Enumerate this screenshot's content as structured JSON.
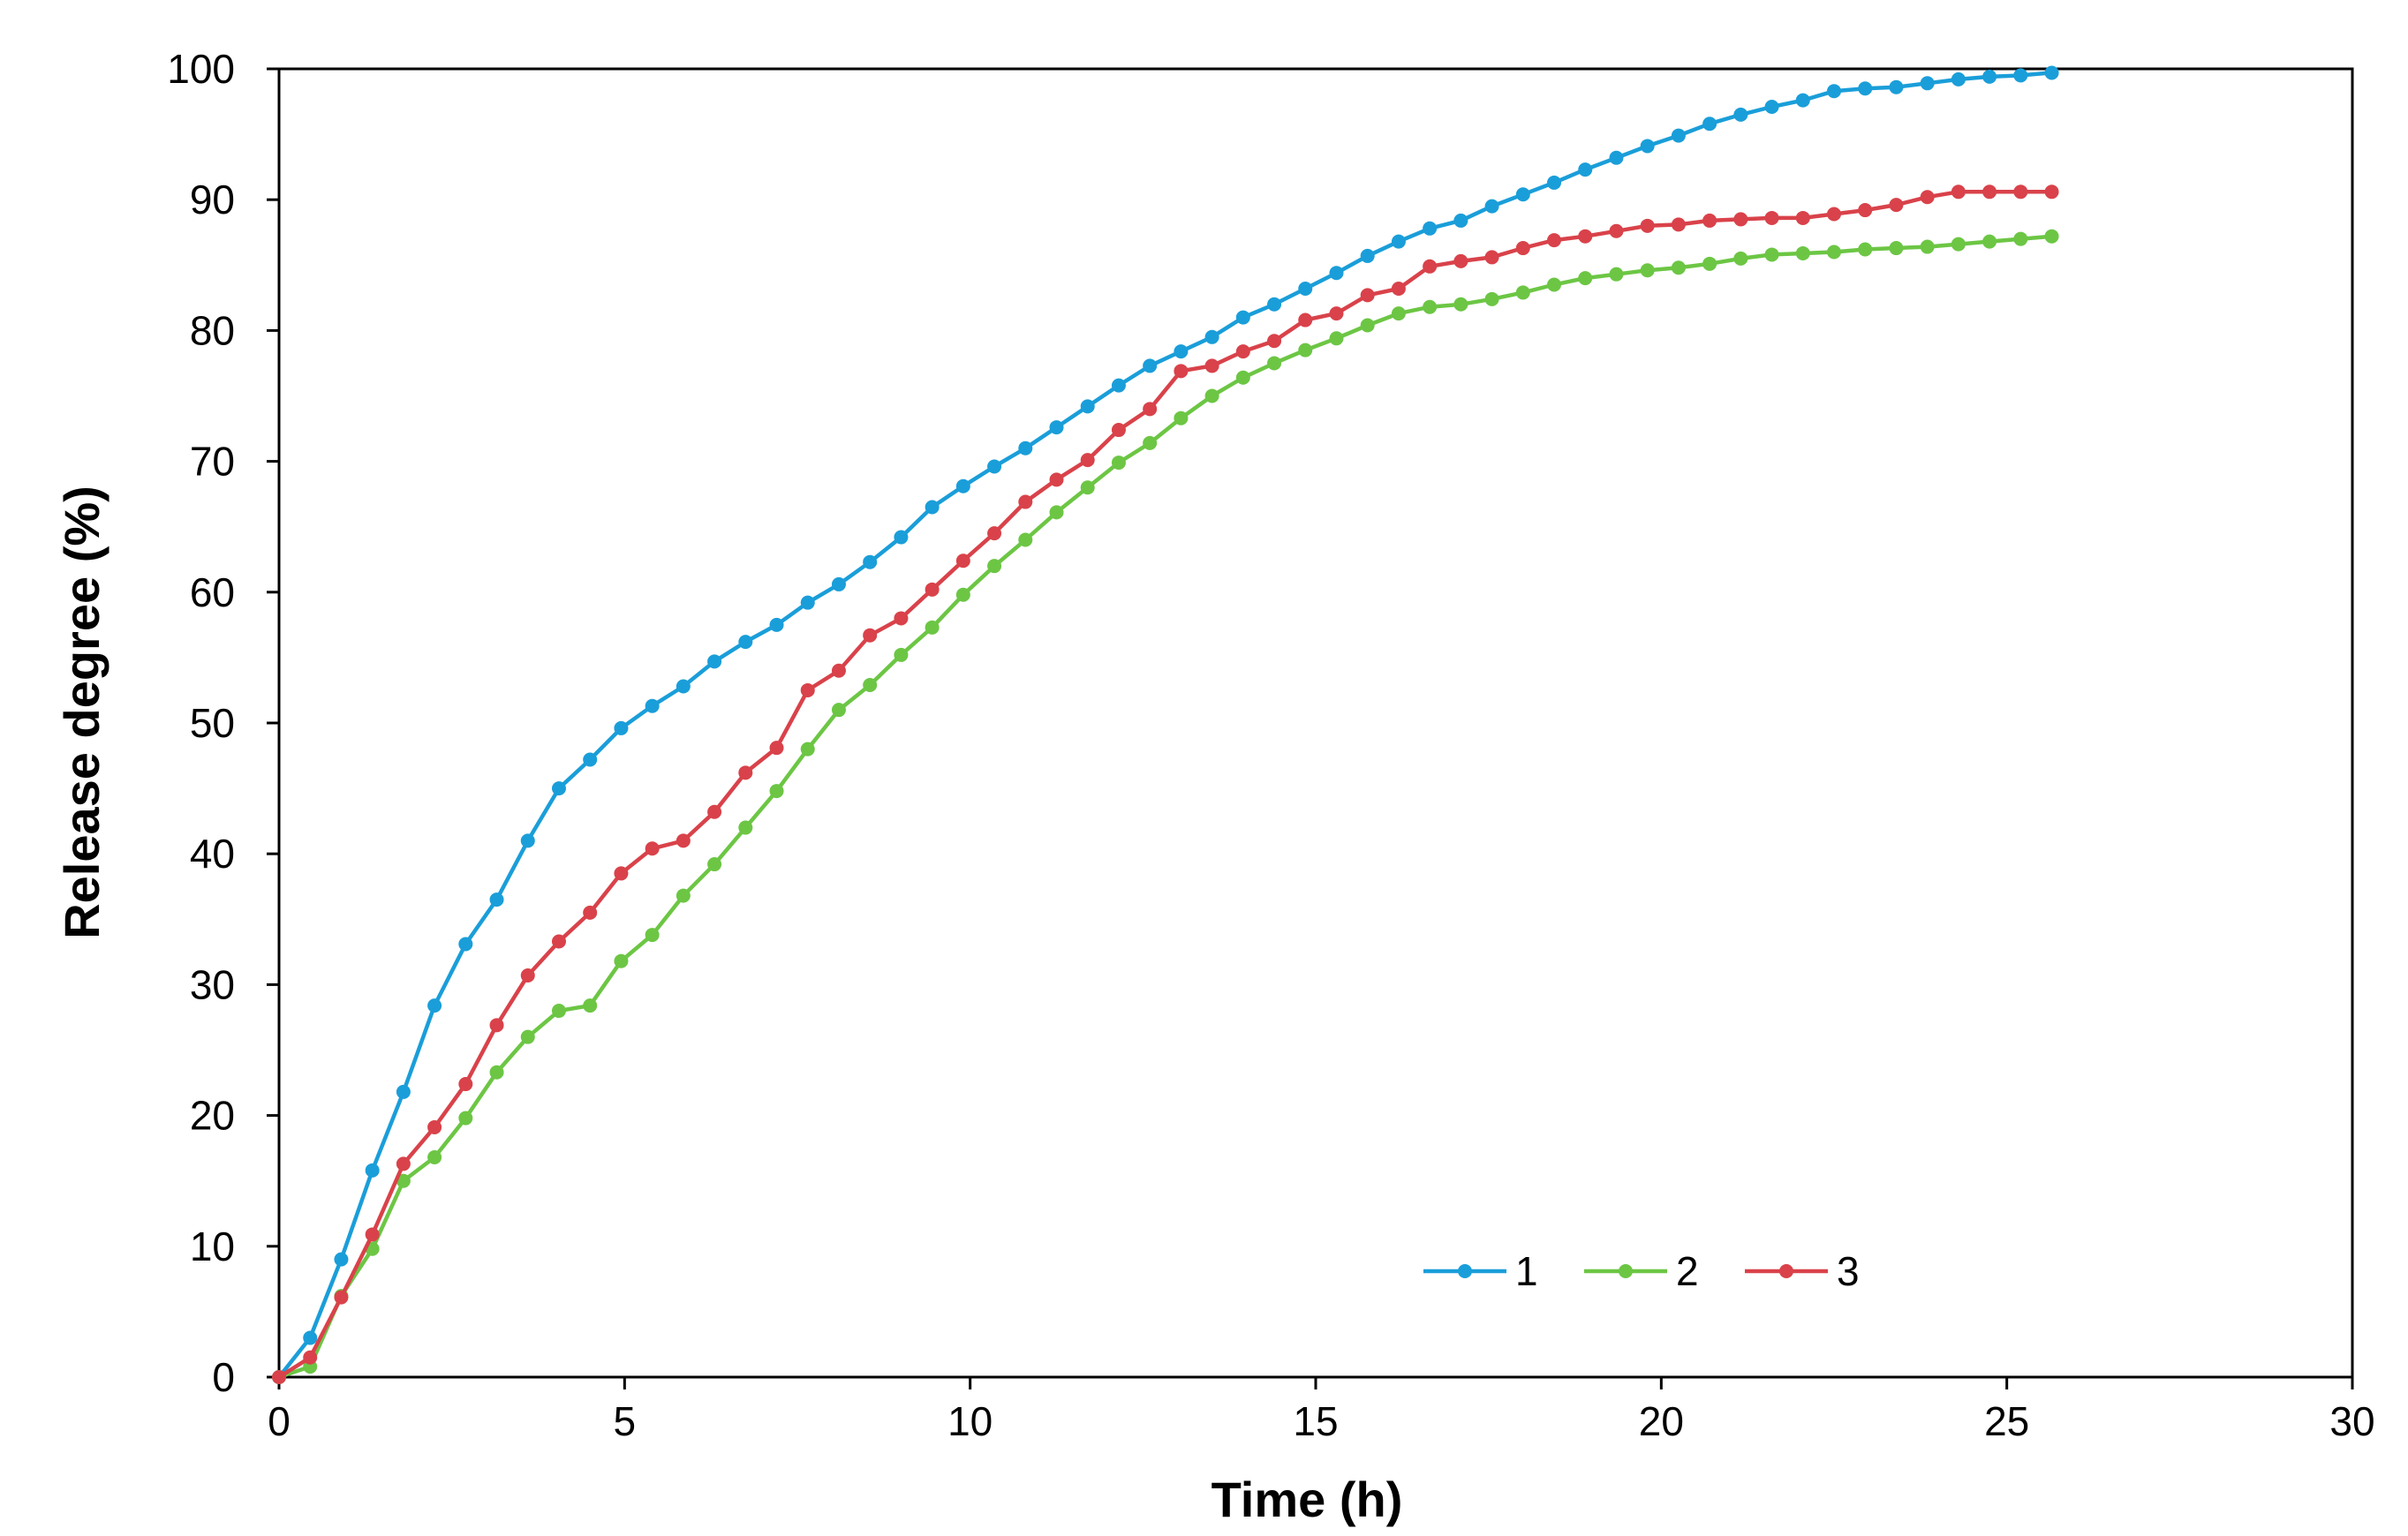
{
  "chart_data": {
    "type": "line",
    "title": "",
    "xlabel": "Time (h)",
    "ylabel": "Release degree (%)",
    "xlim": [
      0,
      30
    ],
    "ylim": [
      0,
      100
    ],
    "xticks": [
      0,
      5,
      10,
      15,
      20,
      25,
      30
    ],
    "yticks": [
      0,
      10,
      20,
      30,
      40,
      50,
      60,
      70,
      80,
      90,
      100
    ],
    "grid": false,
    "legend_position": "bottom-right",
    "x": [
      0,
      0.45,
      0.9,
      1.35,
      1.8,
      2.25,
      2.7,
      3.15,
      3.6,
      4.05,
      4.5,
      4.95,
      5.4,
      5.85,
      6.3,
      6.75,
      7.2,
      7.65,
      8.1,
      8.55,
      9.0,
      9.45,
      9.9,
      10.35,
      10.8,
      11.25,
      11.7,
      12.15,
      12.6,
      13.05,
      13.5,
      13.95,
      14.4,
      14.85,
      15.3,
      15.75,
      16.2,
      16.65,
      17.1,
      17.55,
      18.0,
      18.45,
      18.9,
      19.35,
      19.8,
      20.25,
      20.7,
      21.15,
      21.6,
      22.05,
      22.5,
      22.95,
      23.4,
      23.85,
      24.3,
      24.75,
      25.2,
      25.65
    ],
    "series": [
      {
        "name": "1",
        "color": "#1a9ed9",
        "values": [
          0,
          3.0,
          9.0,
          15.8,
          21.8,
          28.4,
          33.1,
          36.5,
          41.0,
          45.0,
          47.2,
          49.6,
          51.3,
          52.8,
          54.7,
          56.2,
          57.5,
          59.2,
          60.6,
          62.3,
          64.2,
          66.5,
          68.1,
          69.6,
          71.0,
          72.6,
          74.2,
          75.8,
          77.3,
          78.4,
          79.5,
          81.0,
          82.0,
          83.2,
          84.4,
          85.7,
          86.8,
          87.8,
          88.4,
          89.5,
          90.4,
          91.3,
          92.3,
          93.2,
          94.1,
          94.9,
          95.8,
          96.5,
          97.1,
          97.6,
          98.3,
          98.5,
          98.6,
          98.9,
          99.2,
          99.4,
          99.5,
          99.7
        ]
      },
      {
        "name": "2",
        "color": "#6cc644",
        "values": [
          0,
          0.8,
          6.2,
          9.8,
          15.0,
          16.8,
          19.8,
          23.3,
          26.0,
          28.0,
          28.4,
          31.8,
          33.8,
          36.8,
          39.2,
          42.0,
          44.8,
          48.0,
          51.0,
          52.9,
          55.2,
          57.3,
          59.8,
          62.0,
          64.0,
          66.1,
          68.0,
          69.9,
          71.4,
          73.3,
          75.0,
          76.4,
          77.5,
          78.5,
          79.4,
          80.4,
          81.3,
          81.8,
          82.0,
          82.4,
          82.9,
          83.5,
          84.0,
          84.3,
          84.6,
          84.8,
          85.1,
          85.5,
          85.8,
          85.9,
          86.0,
          86.2,
          86.3,
          86.4,
          86.6,
          86.8,
          87.0,
          87.2
        ]
      },
      {
        "name": "3",
        "color": "#d9424a",
        "values": [
          0,
          1.5,
          6.1,
          10.9,
          16.3,
          19.1,
          22.4,
          26.9,
          30.7,
          33.3,
          35.5,
          38.5,
          40.4,
          41.0,
          43.2,
          46.2,
          48.1,
          52.5,
          54.0,
          56.7,
          58.0,
          60.2,
          62.4,
          64.5,
          66.9,
          68.6,
          70.1,
          72.4,
          74.0,
          76.9,
          77.3,
          78.4,
          79.2,
          80.8,
          81.3,
          82.7,
          83.2,
          84.9,
          85.3,
          85.6,
          86.3,
          86.9,
          87.2,
          87.6,
          88.0,
          88.1,
          88.4,
          88.5,
          88.6,
          88.6,
          88.9,
          89.2,
          89.6,
          90.2,
          90.6,
          90.6,
          90.6,
          90.6
        ]
      }
    ]
  }
}
